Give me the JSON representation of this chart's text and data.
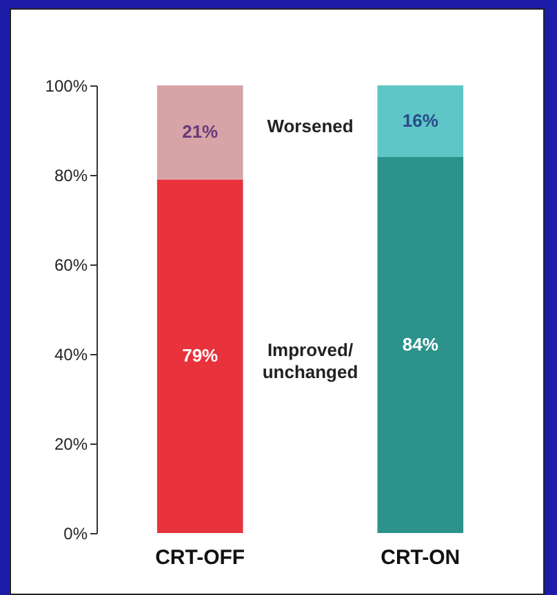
{
  "chart_data": {
    "type": "bar",
    "stacked": true,
    "categories": [
      "CRT-OFF",
      "CRT-ON"
    ],
    "series": [
      {
        "name": "Improved/ unchanged",
        "colors": [
          "#e8323c",
          "#2b938c"
        ],
        "values": [
          79,
          84
        ],
        "value_labels": [
          "79%",
          "84%"
        ]
      },
      {
        "name": "Worsened",
        "colors": [
          "#d6a4a6",
          "#5ec6c6"
        ],
        "values": [
          21,
          16
        ],
        "value_labels": [
          "21%",
          "16%"
        ]
      }
    ],
    "ylim": [
      0,
      100
    ],
    "yticks": [
      {
        "value": 0,
        "label": "0%"
      },
      {
        "value": 20,
        "label": "20%"
      },
      {
        "value": 40,
        "label": "40%"
      },
      {
        "value": 60,
        "label": "60%"
      },
      {
        "value": 80,
        "label": "80%"
      },
      {
        "value": 100,
        "label": "100%"
      }
    ],
    "grid": false
  }
}
